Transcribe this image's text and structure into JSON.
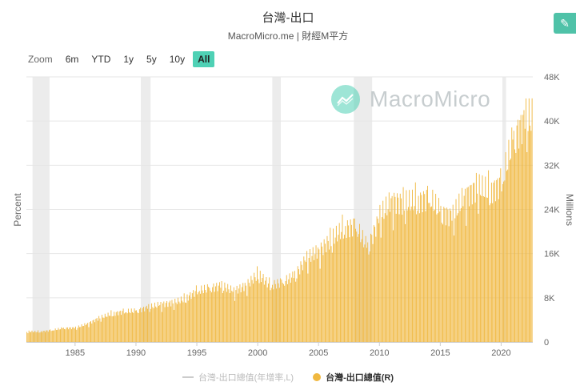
{
  "header": {
    "title": "台灣-出口",
    "subtitle": "MacroMicro.me | 財經M平方"
  },
  "zoom": {
    "label": "Zoom",
    "buttons": [
      "6m",
      "YTD",
      "1y",
      "5y",
      "10y",
      "All"
    ],
    "active": "All"
  },
  "watermark": {
    "text": "MacroMicro"
  },
  "legend": {
    "items": [
      {
        "label": "台灣-出口總值(年增率,L)",
        "active": false
      },
      {
        "label": "台灣-出口總值(R)",
        "active": true
      }
    ]
  },
  "colors": {
    "bar": "#f0b840",
    "recession": "#ececec",
    "accent": "#4fd1b5"
  },
  "chart_data": {
    "type": "bar",
    "title": "台灣-出口",
    "ylabel_left": "Percent",
    "ylabel_right": "Millions",
    "x_ticks": [
      "1985",
      "1990",
      "1995",
      "2000",
      "2005",
      "2010",
      "2015",
      "2020"
    ],
    "y_right_ticks": [
      "0",
      "8K",
      "16K",
      "24K",
      "32K",
      "40K",
      "48K"
    ],
    "x_range": [
      1981.0,
      2022.6
    ],
    "y_right_range": [
      0,
      48000
    ],
    "recession_bands": [
      [
        1981.5,
        1982.9
      ],
      [
        1990.4,
        1991.2
      ],
      [
        2001.2,
        2001.9
      ],
      [
        2007.9,
        2009.4
      ],
      [
        2020.1,
        2020.4
      ]
    ],
    "series": [
      {
        "name": "台灣-出口總值(R)",
        "unit": "Millions",
        "annual_average": [
          [
            1981,
            1900
          ],
          [
            1982,
            1850
          ],
          [
            1983,
            2100
          ],
          [
            1984,
            2500
          ],
          [
            1985,
            2550
          ],
          [
            1986,
            3300
          ],
          [
            1987,
            4400
          ],
          [
            1988,
            5100
          ],
          [
            1989,
            5500
          ],
          [
            1990,
            5600
          ],
          [
            1991,
            6300
          ],
          [
            1992,
            6800
          ],
          [
            1993,
            7100
          ],
          [
            1994,
            7800
          ],
          [
            1995,
            9300
          ],
          [
            1996,
            9700
          ],
          [
            1997,
            10200
          ],
          [
            1998,
            9200
          ],
          [
            1999,
            10200
          ],
          [
            2000,
            12300
          ],
          [
            2001,
            10200
          ],
          [
            2002,
            10800
          ],
          [
            2003,
            12000
          ],
          [
            2004,
            15200
          ],
          [
            2005,
            16500
          ],
          [
            2006,
            18600
          ],
          [
            2007,
            20500
          ],
          [
            2008,
            21000
          ],
          [
            2009,
            17000
          ],
          [
            2010,
            22800
          ],
          [
            2011,
            25600
          ],
          [
            2012,
            25200
          ],
          [
            2013,
            25400
          ],
          [
            2014,
            26200
          ],
          [
            2015,
            23500
          ],
          [
            2016,
            22800
          ],
          [
            2017,
            26500
          ],
          [
            2018,
            28000
          ],
          [
            2019,
            27200
          ],
          [
            2020,
            28800
          ],
          [
            2021,
            37000
          ],
          [
            2022,
            40500
          ]
        ]
      }
    ]
  }
}
